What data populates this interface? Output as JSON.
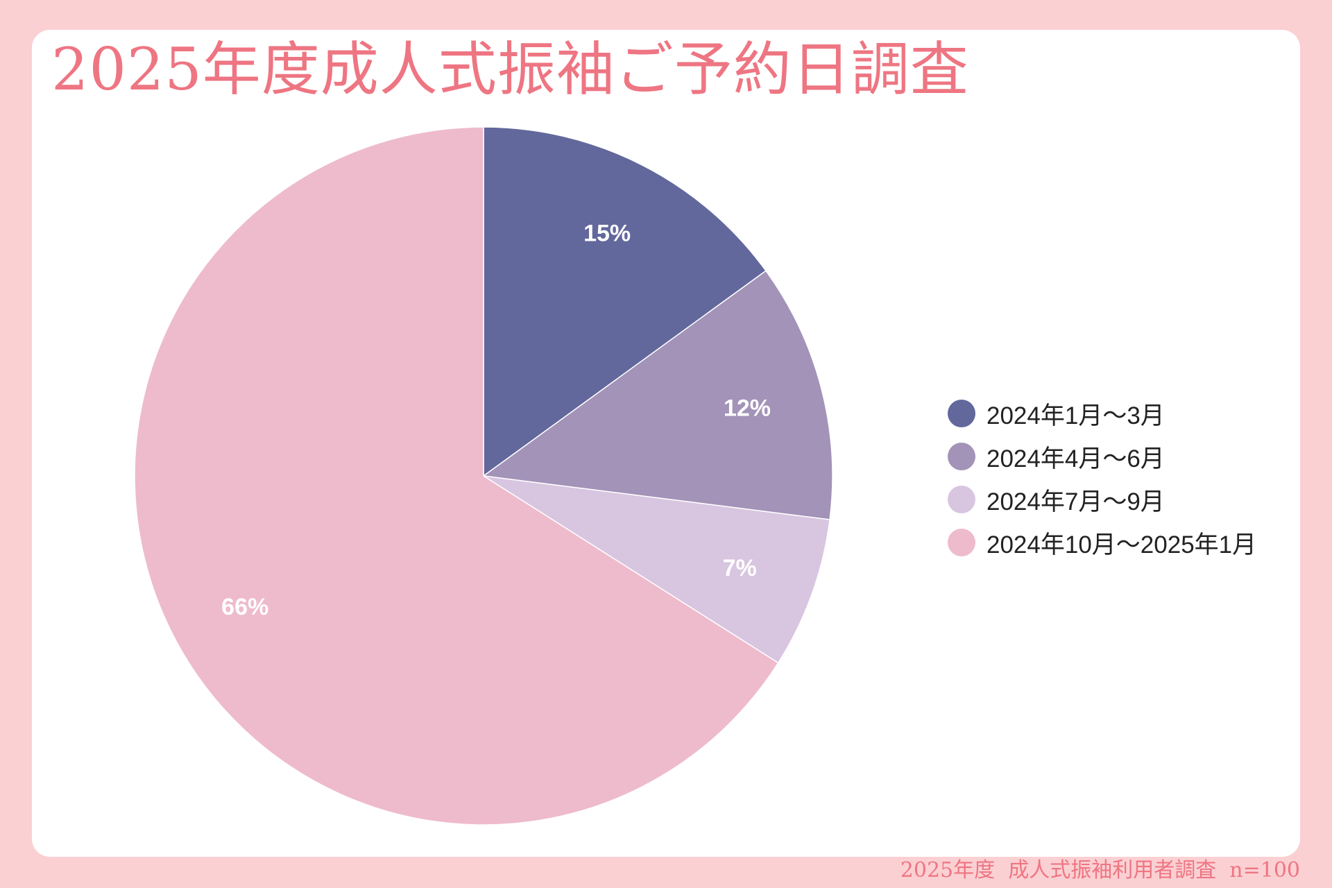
{
  "title": "2025年度成人式振袖ご予約日調査",
  "footer": "2025年度  成人式振袖利用者調査  n=100",
  "chart_data": {
    "type": "pie",
    "title": "2025年度成人式振袖ご予約日調査",
    "legend_position": "right",
    "categories": [
      "2024年1月～3月",
      "2024年4月～6月",
      "2024年7月～9月",
      "2024年10月～2025年1月"
    ],
    "values": [
      15,
      12,
      7,
      66
    ],
    "labels": [
      "15%",
      "12%",
      "7%",
      "66%"
    ],
    "colors": [
      "#62679c",
      "#a393b8",
      "#d8c5e0",
      "#eebbcc"
    ]
  }
}
